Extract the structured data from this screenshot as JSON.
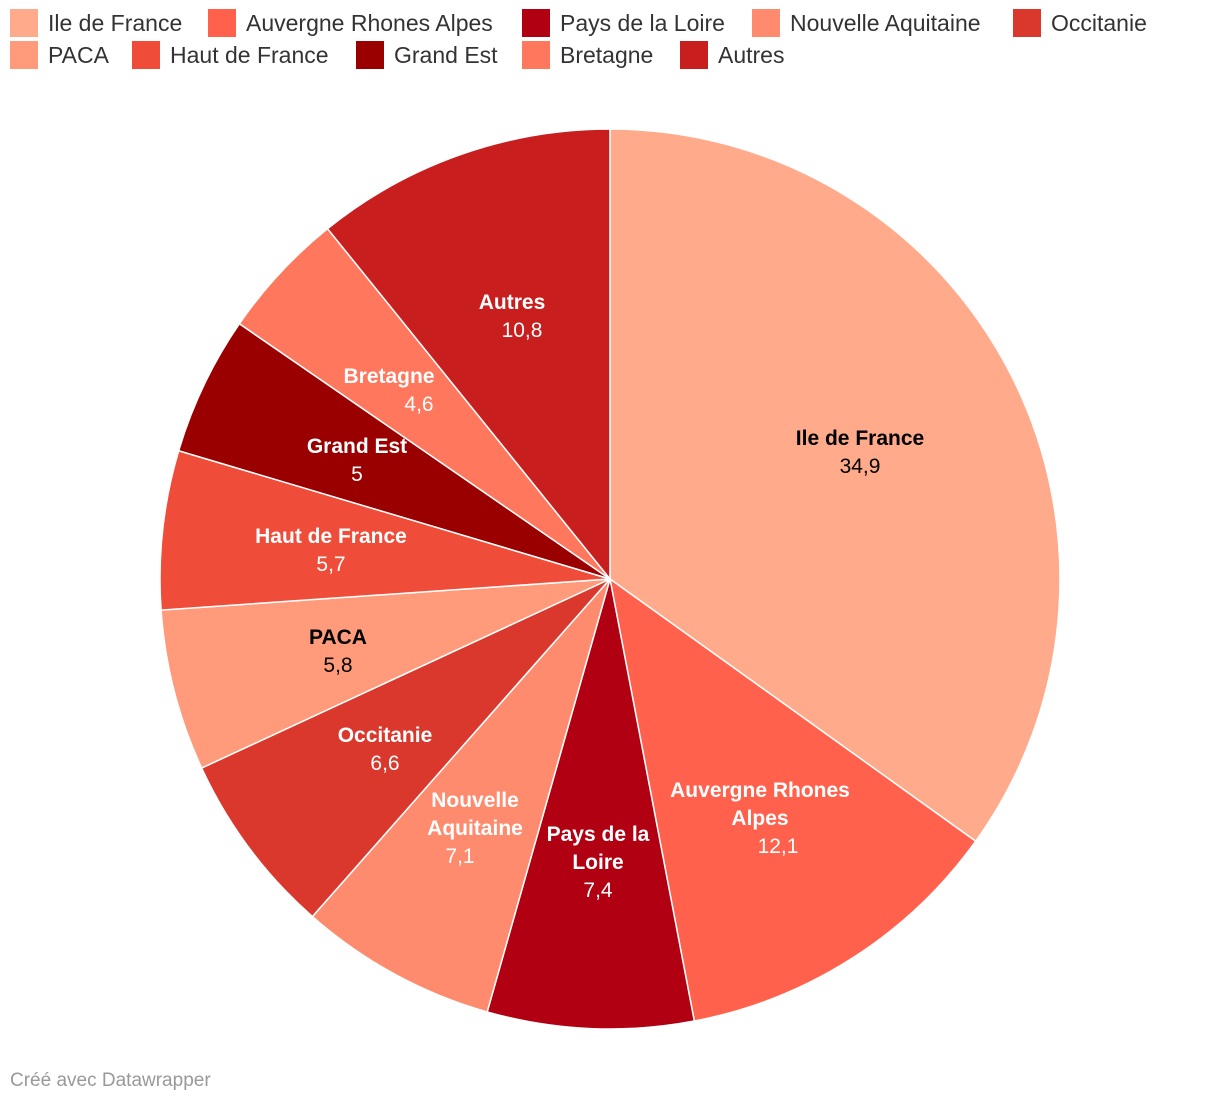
{
  "chart_data": {
    "type": "pie",
    "title": "",
    "series": [
      {
        "name": "Ile de France",
        "value": 34.9,
        "display": "34,9",
        "color": "#ffaa8a",
        "label_color": "#000000"
      },
      {
        "name": "Auvergne Rhones Alpes",
        "value": 12.1,
        "display": "12,1",
        "color": "#ff614c",
        "label_color": "#ffffff"
      },
      {
        "name": "Pays de la Loire",
        "value": 7.4,
        "display": "7,4",
        "color": "#b10012",
        "label_color": "#ffffff"
      },
      {
        "name": "Nouvelle Aquitaine",
        "value": 7.1,
        "display": "7,1",
        "color": "#ff8b6e",
        "label_color": "#ffffff"
      },
      {
        "name": "Occitanie",
        "value": 6.6,
        "display": "6,6",
        "color": "#db382d",
        "label_color": "#ffffff"
      },
      {
        "name": "PACA",
        "value": 5.8,
        "display": "5,8",
        "color": "#ff9a7b",
        "label_color": "#000000"
      },
      {
        "name": "Haut de France",
        "value": 5.7,
        "display": "5,7",
        "color": "#ef4d3a",
        "label_color": "#ffffff"
      },
      {
        "name": "Grand Est",
        "value": 5.0,
        "display": "5",
        "color": "#9b0000",
        "label_color": "#ffffff"
      },
      {
        "name": "Bretagne",
        "value": 4.6,
        "display": "4,6",
        "color": "#ff775c",
        "label_color": "#ffffff"
      },
      {
        "name": "Autres",
        "value": 10.8,
        "display": "10,8",
        "color": "#c81e1e",
        "label_color": "#ffffff"
      }
    ],
    "legend": {
      "placement": "top",
      "rows": [
        [
          "Ile de France",
          "Auvergne Rhones Alpes",
          "Pays de la Loire",
          "Nouvelle Aquitaine",
          "Occitanie"
        ],
        [
          "PACA",
          "Haut de France",
          "Grand Est",
          "Bretagne",
          "Autres"
        ]
      ]
    }
  },
  "footer": {
    "credit": "Créé avec Datawrapper"
  }
}
